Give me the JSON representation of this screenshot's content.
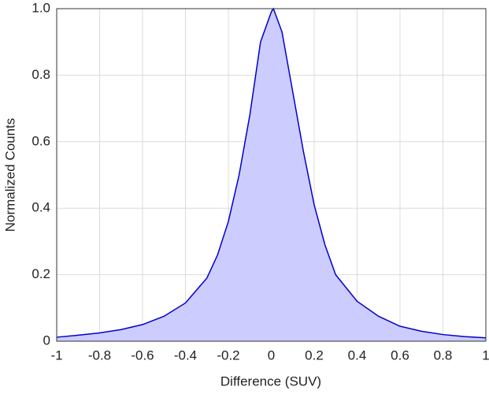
{
  "chart_data": {
    "type": "area",
    "xlabel": "Difference (SUV)",
    "ylabel": "Normalized Counts",
    "x": [
      -1,
      -0.9,
      -0.8,
      -0.7,
      -0.6,
      -0.5,
      -0.4,
      -0.3,
      -0.25,
      -0.2,
      -0.15,
      -0.1,
      -0.05,
      0,
      0.01,
      0.05,
      0.1,
      0.15,
      0.2,
      0.25,
      0.3,
      0.4,
      0.5,
      0.6,
      0.7,
      0.8,
      0.9,
      1
    ],
    "values": [
      0.012,
      0.018,
      0.025,
      0.035,
      0.05,
      0.075,
      0.115,
      0.19,
      0.26,
      0.36,
      0.5,
      0.68,
      0.9,
      0.99,
      1.0,
      0.93,
      0.75,
      0.57,
      0.41,
      0.29,
      0.2,
      0.12,
      0.075,
      0.045,
      0.03,
      0.02,
      0.014,
      0.01
    ],
    "color": "#0000cc",
    "fill": "#ccccff",
    "xlim": [
      -1,
      1
    ],
    "xticks": [
      -1,
      -0.8,
      -0.6,
      -0.4,
      -0.2,
      0,
      0.2,
      0.4,
      0.6,
      0.8,
      1
    ],
    "ylim": [
      0,
      1
    ],
    "yticks": [
      0,
      0.2,
      0.4,
      0.6,
      0.8,
      {
        "value": 1,
        "label": "1.0"
      }
    ],
    "grid": true
  }
}
